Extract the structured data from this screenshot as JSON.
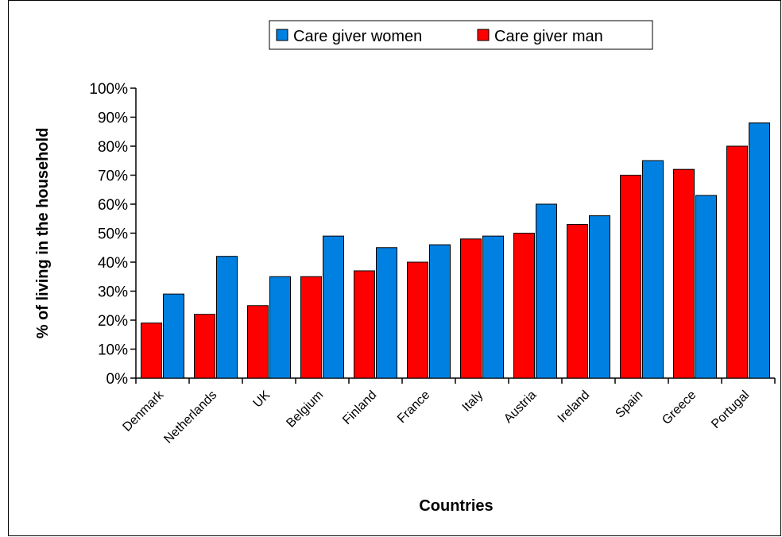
{
  "chart_data": {
    "type": "bar",
    "xlabel": "Countries",
    "ylabel": "% of living in the household",
    "ylim": [
      0,
      100
    ],
    "yticks": [
      "0%",
      "10%",
      "20%",
      "30%",
      "40%",
      "50%",
      "60%",
      "70%",
      "80%",
      "90%",
      "100%"
    ],
    "grid": false,
    "legend": "top",
    "categories": [
      "Denmark",
      "Netherlands",
      "UK",
      "Belgium",
      "Finland",
      "France",
      "Italy",
      "Austria",
      "Ireland",
      "Spain",
      "Greece",
      "Portugal"
    ],
    "series": [
      {
        "name": "Care giver man",
        "color": "#ff0000",
        "values": [
          19,
          22,
          25,
          35,
          37,
          40,
          48,
          50,
          53,
          70,
          72,
          80
        ]
      },
      {
        "name": "Care giver women",
        "color": "#0080e0",
        "values": [
          29,
          42,
          35,
          49,
          45,
          46,
          49,
          60,
          56,
          75,
          63,
          88
        ]
      }
    ],
    "legend_order": [
      "Care giver women",
      "Care giver man"
    ]
  }
}
